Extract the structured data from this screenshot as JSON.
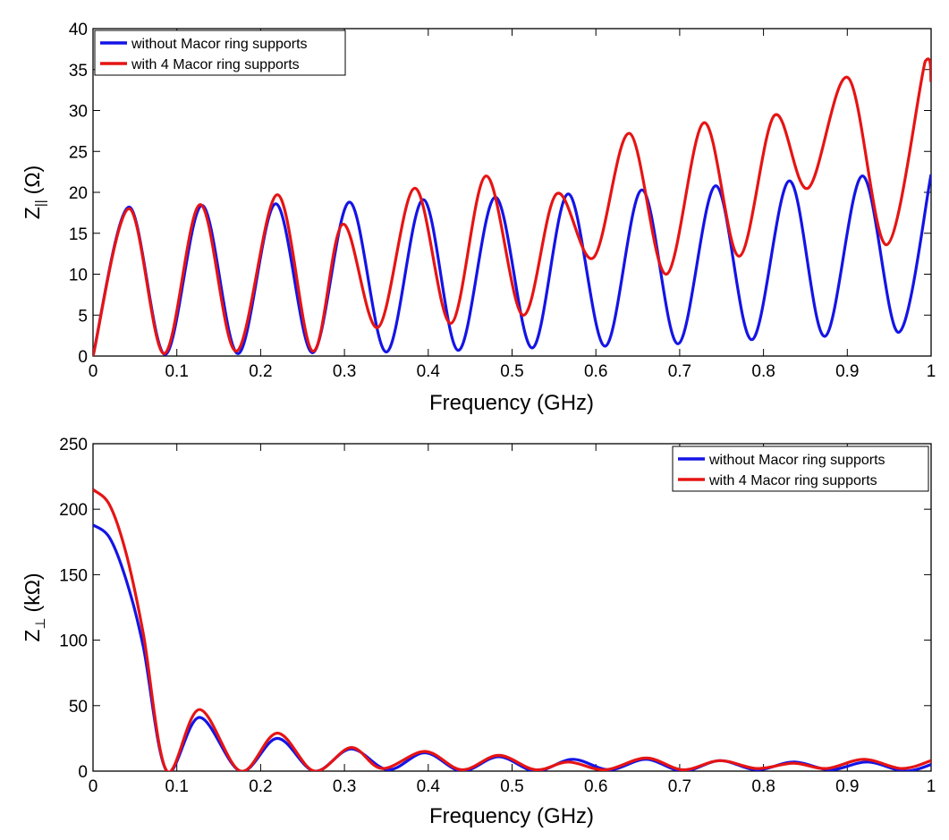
{
  "chart_data": [
    {
      "type": "line",
      "xlabel": "Frequency (GHz)",
      "ylabel": "Z",
      "ylabel_subscript": "||",
      "ylabel_unit": "(Ω)",
      "xlim": [
        0,
        1
      ],
      "ylim": [
        0,
        40
      ],
      "xticks": [
        0,
        0.1,
        0.2,
        0.3,
        0.4,
        0.5,
        0.6,
        0.7,
        0.8,
        0.9,
        1
      ],
      "xtick_labels": [
        "0",
        "0.1",
        "0.2",
        "0.3",
        "0.4",
        "0.5",
        "0.6",
        "0.7",
        "0.8",
        "0.9",
        "1"
      ],
      "yticks": [
        0,
        5,
        10,
        15,
        20,
        25,
        30,
        35,
        40
      ],
      "ytick_labels": [
        "0",
        "5",
        "10",
        "15",
        "20",
        "25",
        "30",
        "35",
        "40"
      ],
      "grid": false,
      "legend": "top-left",
      "series": [
        {
          "name": "without Macor ring supports",
          "color": "#1414e6",
          "x": [
            0,
            0.043,
            0.086,
            0.13,
            0.173,
            0.218,
            0.262,
            0.306,
            0.35,
            0.394,
            0.436,
            0.48,
            0.524,
            0.567,
            0.611,
            0.655,
            0.698,
            0.743,
            0.786,
            0.831,
            0.873,
            0.918,
            0.961,
            1.0
          ],
          "y": [
            0,
            18.2,
            0.2,
            18.4,
            0.3,
            18.6,
            0.4,
            18.8,
            0.5,
            19.1,
            0.7,
            19.4,
            1.0,
            19.8,
            1.2,
            20.3,
            1.5,
            20.8,
            2.0,
            21.4,
            2.4,
            22.0,
            2.9,
            22.2
          ]
        },
        {
          "name": "with 4 Macor ring supports",
          "color": "#e61414",
          "x": [
            0,
            0.043,
            0.085,
            0.128,
            0.171,
            0.22,
            0.262,
            0.298,
            0.34,
            0.384,
            0.427,
            0.469,
            0.513,
            0.553,
            0.597,
            0.64,
            0.684,
            0.729,
            0.771,
            0.813,
            0.853,
            0.901,
            0.947,
            0.993,
            1.0
          ],
          "y": [
            0,
            18.0,
            0.3,
            18.5,
            0.6,
            19.7,
            0.6,
            16.1,
            3.5,
            20.5,
            4.0,
            22.0,
            5.0,
            19.8,
            12.0,
            27.2,
            10.0,
            28.5,
            12.2,
            29.4,
            20.5,
            34.0,
            13.6,
            36.0,
            33.5
          ]
        }
      ]
    },
    {
      "type": "line",
      "xlabel": "Frequency (GHz)",
      "ylabel": "Z",
      "ylabel_subscript": "⊥",
      "ylabel_unit": "(kΩ)",
      "xlim": [
        0,
        1
      ],
      "ylim": [
        0,
        250
      ],
      "xticks": [
        0,
        0.1,
        0.2,
        0.3,
        0.4,
        0.5,
        0.6,
        0.7,
        0.8,
        0.9,
        1
      ],
      "xtick_labels": [
        "0",
        "0.1",
        "0.2",
        "0.3",
        "0.4",
        "0.5",
        "0.6",
        "0.7",
        "0.8",
        "0.9",
        "1"
      ],
      "yticks": [
        0,
        50,
        100,
        150,
        200,
        250
      ],
      "ytick_labels": [
        "0",
        "50",
        "100",
        "150",
        "200",
        "250"
      ],
      "grid": false,
      "legend": "top-right",
      "series": [
        {
          "name": "without Macor ring supports",
          "color": "#1414e6",
          "x": [
            0,
            0.02,
            0.04,
            0.06,
            0.088,
            0.127,
            0.176,
            0.22,
            0.264,
            0.308,
            0.352,
            0.396,
            0.44,
            0.484,
            0.528,
            0.572,
            0.616,
            0.66,
            0.704,
            0.748,
            0.792,
            0.836,
            0.88,
            0.924,
            0.968,
            1.0
          ],
          "y": [
            188,
            178,
            145,
            95,
            0,
            41,
            0,
            25,
            0,
            17,
            1,
            14,
            0,
            11,
            0,
            9,
            1,
            9,
            0,
            8,
            1,
            7,
            1,
            7,
            0,
            5
          ]
        },
        {
          "name": "with 4 Macor ring supports",
          "color": "#e61414",
          "x": [
            0,
            0.02,
            0.04,
            0.06,
            0.088,
            0.127,
            0.176,
            0.22,
            0.264,
            0.308,
            0.345,
            0.396,
            0.44,
            0.484,
            0.528,
            0.567,
            0.611,
            0.66,
            0.704,
            0.748,
            0.792,
            0.836,
            0.875,
            0.92,
            0.965,
            1.0
          ],
          "y": [
            215,
            203,
            165,
            105,
            0,
            47,
            0,
            29,
            0,
            18,
            2,
            15,
            1,
            12,
            1,
            7,
            1,
            10,
            1,
            8,
            2,
            6,
            2,
            9,
            2,
            8
          ]
        }
      ]
    }
  ]
}
